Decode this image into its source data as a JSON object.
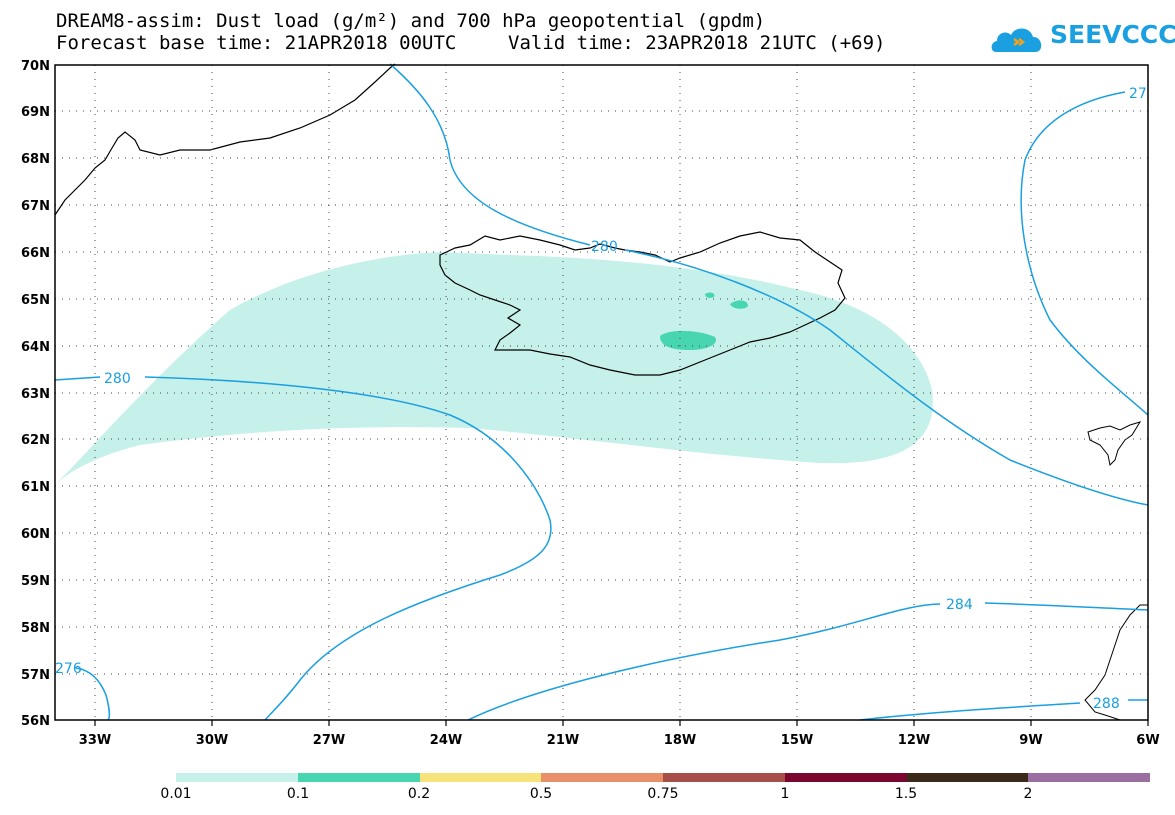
{
  "title": {
    "line1": "DREAM8-assim: Dust load (g/m²) and 700 hPa geopotential (gpdm)",
    "line2_left": "Forecast base time: 21APR2018 00UTC",
    "line2_right": "Valid time: 23APR2018 21UTC (+69)"
  },
  "logo": {
    "text": "SEEVCCC",
    "icon": "cloud-icon",
    "color": "#1a9fe0"
  },
  "map": {
    "lat_labels": [
      "70N",
      "69N",
      "68N",
      "67N",
      "66N",
      "65N",
      "64N",
      "63N",
      "62N",
      "61N",
      "60N",
      "59N",
      "58N",
      "57N",
      "56N"
    ],
    "lon_labels": [
      "33W",
      "30W",
      "27W",
      "24W",
      "21W",
      "18W",
      "15W",
      "12W",
      "9W",
      "6W"
    ],
    "lat_range": [
      56,
      70
    ],
    "lon_range": [
      -34.2,
      -6
    ],
    "gridlines": true,
    "contour_labels": [
      "280",
      "280",
      "284",
      "288",
      "276",
      "27"
    ],
    "contour_color": "#1a9fe0",
    "dust_fill_color": "#c6f0ea",
    "dust_core_color": "#48d6b0"
  },
  "colorbar": {
    "colors": [
      "#c6f0ea",
      "#48d6b0",
      "#f6e47a",
      "#e8906a",
      "#a84e48",
      "#7a0630",
      "#3a2a1a",
      "#9a6ea0"
    ],
    "labels": [
      "0.01",
      "0.1",
      "0.2",
      "0.5",
      "0.75",
      "1",
      "1.5",
      "2"
    ]
  }
}
